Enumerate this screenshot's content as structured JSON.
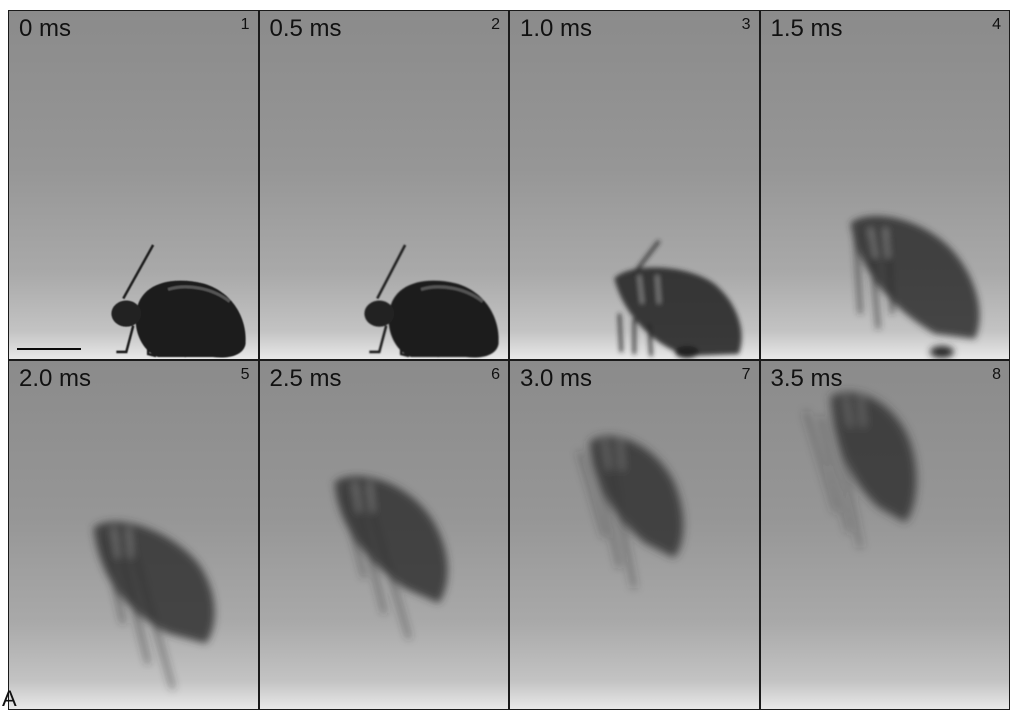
{
  "panel_label": "A",
  "frames": [
    {
      "time": "0 ms",
      "index": "1"
    },
    {
      "time": "0.5 ms",
      "index": "2"
    },
    {
      "time": "1.0 ms",
      "index": "3"
    },
    {
      "time": "1.5 ms",
      "index": "4"
    },
    {
      "time": "2.0 ms",
      "index": "5"
    },
    {
      "time": "2.5 ms",
      "index": "6"
    },
    {
      "time": "3.0 ms",
      "index": "7"
    },
    {
      "time": "3.5 ms",
      "index": "8"
    }
  ],
  "colors": {
    "beetle": "#1e1e1e",
    "background_top": "#8b8b8b",
    "surface": "#e8e8e8"
  }
}
